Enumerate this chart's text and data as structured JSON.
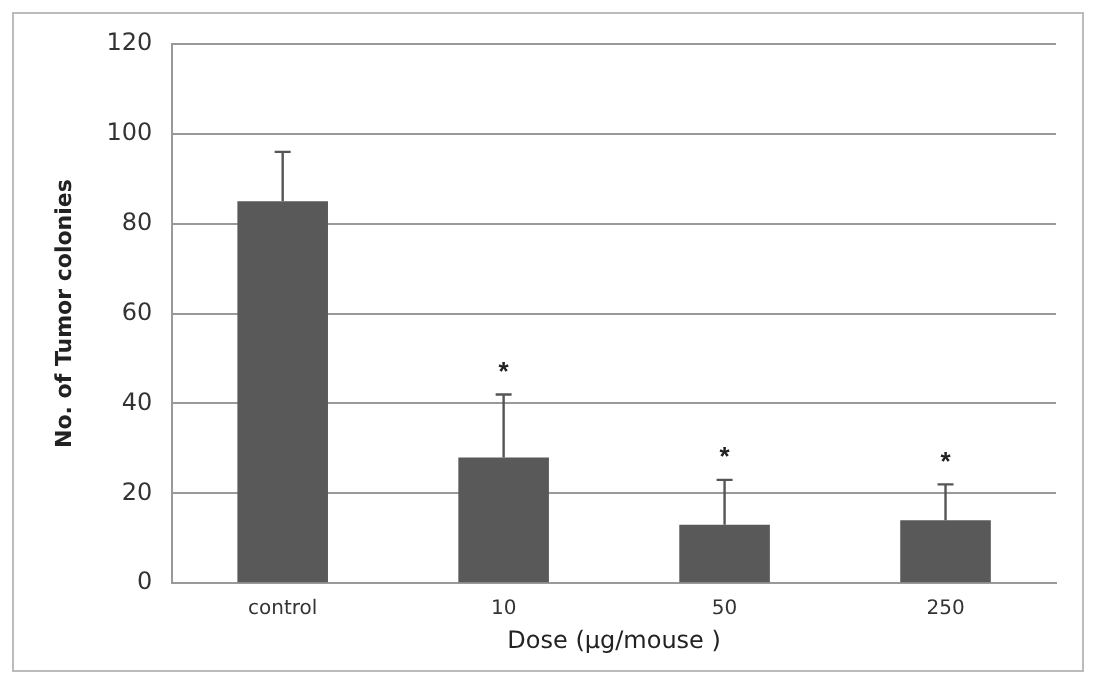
{
  "chart_data": {
    "type": "bar",
    "xlabel": "Dose (μg/mouse )",
    "ylabel": "No. of Tumor colonies",
    "categories": [
      "control",
      "10",
      "50",
      "250"
    ],
    "values": [
      85,
      28,
      13,
      14
    ],
    "errors": [
      [
        85,
        96
      ],
      [
        28,
        42
      ],
      [
        13,
        23
      ],
      [
        14,
        22
      ]
    ],
    "color": "#595959",
    "ylim": [
      0,
      120
    ],
    "yticks": [
      0,
      20,
      40,
      60,
      80,
      100,
      120
    ],
    "grid": "y",
    "annotations": [
      {
        "text": "*",
        "x": "10",
        "y": 42
      },
      {
        "text": "*",
        "x": "50",
        "y": 23
      },
      {
        "text": "*",
        "x": "250",
        "y": 22
      }
    ]
  }
}
